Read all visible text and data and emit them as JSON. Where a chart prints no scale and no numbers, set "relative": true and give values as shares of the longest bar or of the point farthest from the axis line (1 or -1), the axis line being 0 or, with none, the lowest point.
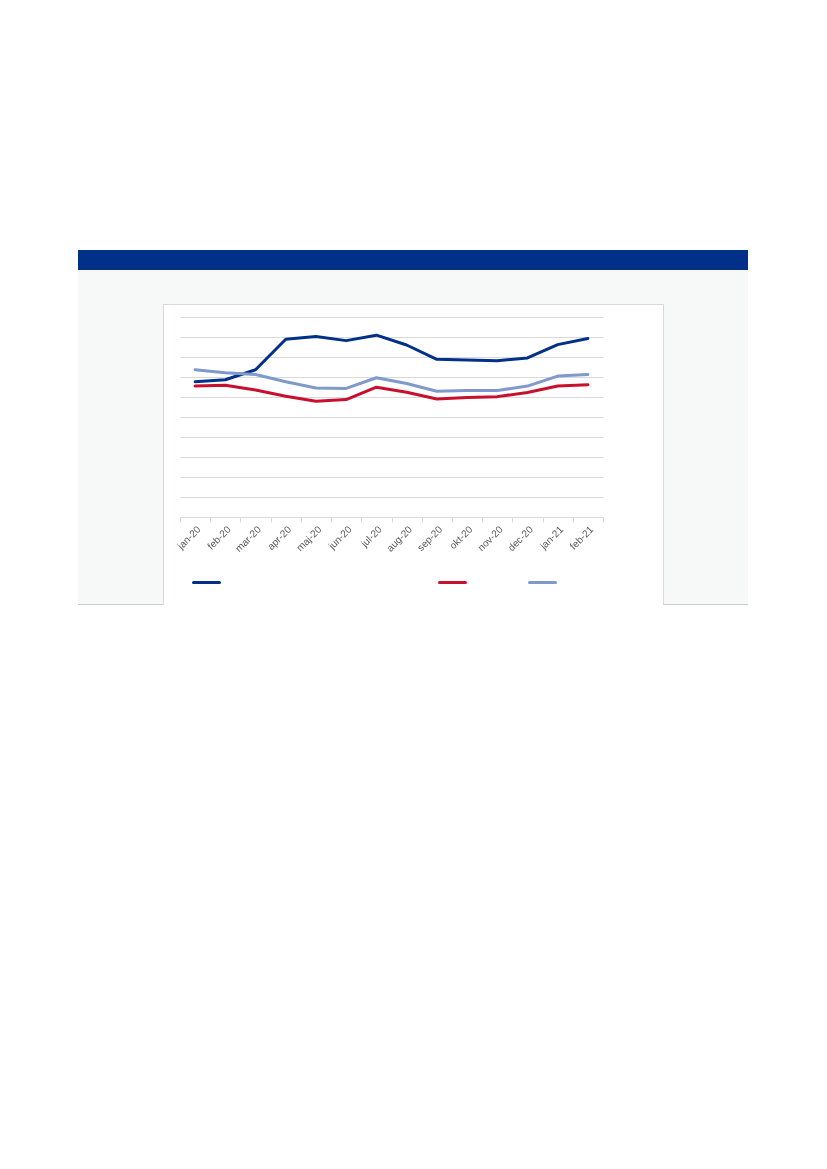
{
  "chart_data": {
    "type": "line",
    "relative": true,
    "grid": "y",
    "categories": [
      "jan-20",
      "feb-20",
      "mar-20",
      "apr-20",
      "maj-20",
      "jun-20",
      "jul-20",
      "aug-20",
      "sep-20",
      "okt-20",
      "nov-20",
      "dec-20",
      "jan-21",
      "feb-21"
    ],
    "series": [
      {
        "color": "#003087",
        "values": [
          0.744,
          0.755,
          0.81,
          0.978,
          0.993,
          0.97,
          1,
          0.946,
          0.867,
          0.863,
          0.86,
          0.875,
          0.948,
          0.982
        ]
      },
      {
        "color": "#c8102e",
        "values": [
          0.72,
          0.725,
          0.699,
          0.664,
          0.637,
          0.646,
          0.714,
          0.686,
          0.649,
          0.657,
          0.662,
          0.685,
          0.72,
          0.727
        ]
      },
      {
        "color": "#7f99cc",
        "values": [
          0.81,
          0.793,
          0.784,
          0.744,
          0.71,
          0.707,
          0.766,
          0.734,
          0.692,
          0.696,
          0.696,
          0.72,
          0.775,
          0.784
        ]
      }
    ]
  }
}
